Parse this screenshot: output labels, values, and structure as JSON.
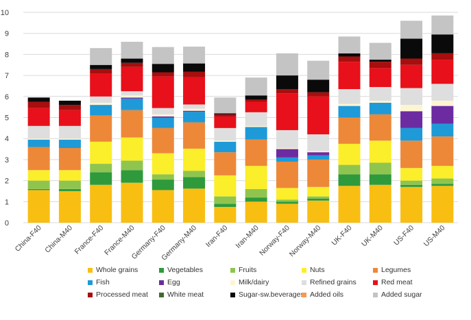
{
  "chart_data": {
    "type": "bar",
    "stacked": true,
    "title": "",
    "xlabel": "",
    "ylabel": "",
    "ylim": [
      0,
      10
    ],
    "yticks": [
      0,
      1,
      2,
      3,
      4,
      5,
      6,
      7,
      8,
      9,
      10
    ],
    "grid": true,
    "legend_position": "bottom",
    "categories": [
      "China-F40",
      "China-M40",
      "France-F40",
      "France-M40",
      "Germany-F40",
      "Germany-M40",
      "Iran-F40",
      "Iran-M40",
      "Norway-F40",
      "Norway-M40",
      "UK-F40",
      "UK-M40",
      "US-F40",
      "US-M40"
    ],
    "series": [
      {
        "name": "Whole grains",
        "color": "#f9be12",
        "values": [
          1.55,
          1.5,
          1.8,
          1.9,
          1.55,
          1.62,
          0.75,
          1.0,
          0.9,
          1.05,
          1.75,
          1.8,
          1.7,
          1.75
        ]
      },
      {
        "name": "Vegetables",
        "color": "#2e9a3c",
        "values": [
          0.05,
          0.1,
          0.6,
          0.6,
          0.5,
          0.55,
          0.15,
          0.2,
          0.1,
          0.1,
          0.55,
          0.5,
          0.1,
          0.1
        ]
      },
      {
        "name": "Fruits",
        "color": "#8fc54f",
        "values": [
          0.4,
          0.4,
          0.4,
          0.45,
          0.25,
          0.3,
          0.35,
          0.4,
          0.1,
          0.1,
          0.45,
          0.55,
          0.2,
          0.25
        ]
      },
      {
        "name": "Nuts",
        "color": "#fbee2a",
        "values": [
          0.5,
          0.5,
          1.05,
          1.1,
          1.0,
          1.05,
          1.0,
          1.1,
          0.55,
          0.45,
          1.0,
          1.05,
          0.6,
          0.6
        ]
      },
      {
        "name": "Legumes",
        "color": "#ed8839",
        "values": [
          1.1,
          1.05,
          1.25,
          1.3,
          1.2,
          1.25,
          1.1,
          1.25,
          1.25,
          1.3,
          1.25,
          1.25,
          1.3,
          1.4
        ]
      },
      {
        "name": "Fish",
        "color": "#1e9ad8",
        "values": [
          0.35,
          0.4,
          0.5,
          0.55,
          0.5,
          0.5,
          0.5,
          0.6,
          0.2,
          0.2,
          0.55,
          0.55,
          0.6,
          0.6
        ]
      },
      {
        "name": "Egg",
        "color": "#6c2ba1",
        "values": [
          0.0,
          0.0,
          0.0,
          0.05,
          0.05,
          0.05,
          0.0,
          0.0,
          0.4,
          0.15,
          0.0,
          0.0,
          0.8,
          0.85
        ]
      },
      {
        "name": "Milk/dairy",
        "color": "#fdf5d2",
        "values": [
          0.05,
          0.05,
          0.1,
          0.1,
          0.1,
          0.1,
          0.05,
          0.05,
          0.05,
          0.05,
          0.1,
          0.1,
          0.3,
          0.25
        ]
      },
      {
        "name": "Refined grains",
        "color": "#dedede",
        "values": [
          0.6,
          0.6,
          0.3,
          0.2,
          0.3,
          0.2,
          0.6,
          0.65,
          0.85,
          0.8,
          0.7,
          0.65,
          0.8,
          0.8
        ]
      },
      {
        "name": "Red meat",
        "color": "#e8101a",
        "values": [
          0.85,
          0.75,
          1.1,
          1.15,
          1.5,
          1.3,
          0.55,
          0.5,
          1.75,
          1.8,
          1.3,
          0.9,
          1.1,
          1.15
        ]
      },
      {
        "name": "Processed meat",
        "color": "#a80e0e",
        "values": [
          0.3,
          0.25,
          0.2,
          0.2,
          0.2,
          0.25,
          0.1,
          0.1,
          0.2,
          0.2,
          0.25,
          0.3,
          0.3,
          0.3
        ]
      },
      {
        "name": "White meat",
        "color": "#3f6b2e",
        "values": [
          0.0,
          0.0,
          0.0,
          0.0,
          0.0,
          0.0,
          0.0,
          0.0,
          0.0,
          0.0,
          0.0,
          0.0,
          0.0,
          0.0
        ]
      },
      {
        "name": "Sugar-sw.beverages",
        "color": "#0a0a0a",
        "values": [
          0.2,
          0.2,
          0.2,
          0.2,
          0.4,
          0.4,
          0.05,
          0.2,
          0.65,
          0.6,
          0.15,
          0.1,
          0.95,
          0.9
        ]
      },
      {
        "name": "Added oils",
        "color": "#f29a57",
        "values": [
          0.0,
          0.0,
          0.0,
          0.0,
          0.0,
          0.0,
          0.0,
          0.0,
          0.0,
          0.0,
          0.0,
          0.0,
          0.0,
          0.0
        ]
      },
      {
        "name": "Added sugar",
        "color": "#c4c4c4",
        "values": [
          0.0,
          0.0,
          0.8,
          0.8,
          0.8,
          0.8,
          0.75,
          0.85,
          1.05,
          0.9,
          0.8,
          0.8,
          0.85,
          0.9
        ]
      }
    ]
  }
}
